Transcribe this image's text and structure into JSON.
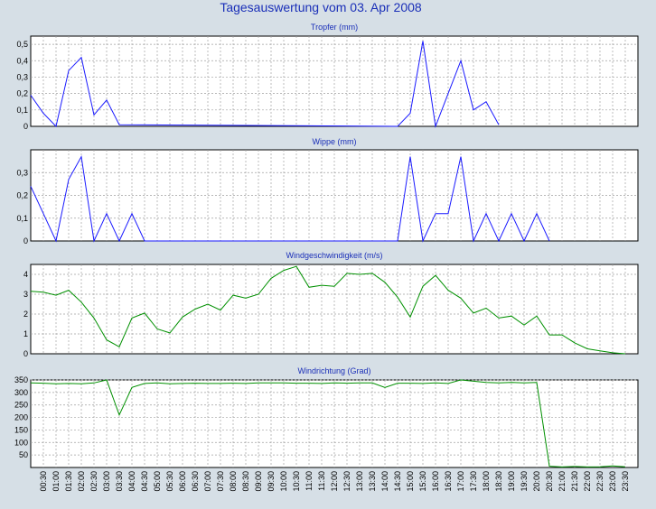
{
  "page_title": "Tagesauswertung vom 03. Apr 2008",
  "colors": {
    "background": "#d6dfe6",
    "plot_background": "#ffffff",
    "grid": "#a0a0a0",
    "title": "#1a2fb8",
    "blue_series": "#1a1aff",
    "green_series": "#009000"
  },
  "x_tick_labels": [
    "00:30",
    "01:00",
    "01:30",
    "02:00",
    "02:30",
    "03:00",
    "03:30",
    "04:00",
    "04:30",
    "05:00",
    "05:30",
    "06:00",
    "06:30",
    "07:00",
    "07:30",
    "08:00",
    "08:30",
    "09:00",
    "09:30",
    "10:00",
    "10:30",
    "11:00",
    "11:30",
    "12:00",
    "12:30",
    "13:00",
    "13:30",
    "14:00",
    "14:30",
    "15:00",
    "15:30",
    "16:00",
    "16:30",
    "17:00",
    "17:30",
    "18:00",
    "18:30",
    "19:00",
    "19:30",
    "20:00",
    "20:30",
    "21:00",
    "21:30",
    "22:00",
    "22:30",
    "23:00",
    "23:30"
  ],
  "chart_data": [
    {
      "type": "line",
      "title": "Tropfer (mm)",
      "color": "blue",
      "ylim": [
        0,
        0.55
      ],
      "yticks": [
        0,
        0.1,
        0.2,
        0.3,
        0.4,
        0.5
      ],
      "ytick_labels": [
        "0",
        "0,1",
        "0,2",
        "0,3",
        "0,4",
        "0,5"
      ],
      "grid": true,
      "x": [
        "00:00",
        "00:30",
        "01:00",
        "01:30",
        "02:00",
        "02:30",
        "03:00",
        "03:30",
        "14:30",
        "15:00",
        "15:30",
        "16:00",
        "16:30",
        "17:00",
        "17:30",
        "18:00",
        "18:30"
      ],
      "values": [
        0.19,
        0.08,
        0,
        0.34,
        0.42,
        0.07,
        0.16,
        0.01,
        0,
        0.08,
        0.52,
        0,
        0.2,
        0.4,
        0.1,
        0.15,
        0.01
      ]
    },
    {
      "type": "line",
      "title": "Wippe (mm)",
      "color": "blue",
      "ylim": [
        0,
        0.4
      ],
      "yticks": [
        0,
        0.1,
        0.2,
        0.3
      ],
      "ytick_labels": [
        "0",
        "0,1",
        "0,2",
        "0,3"
      ],
      "grid": true,
      "x": [
        "00:00",
        "00:30",
        "01:00",
        "01:30",
        "02:00",
        "02:30",
        "03:00",
        "03:30",
        "04:00",
        "04:30",
        "14:30",
        "15:00",
        "15:30",
        "16:00",
        "16:30",
        "17:00",
        "17:30",
        "18:00",
        "18:30",
        "19:00",
        "19:30",
        "20:00",
        "20:30"
      ],
      "values": [
        0.24,
        0.12,
        0,
        0.27,
        0.37,
        0,
        0.12,
        0,
        0.12,
        0,
        0,
        0.37,
        0,
        0.12,
        0.12,
        0.37,
        0,
        0.12,
        0,
        0.12,
        0,
        0.12,
        0
      ]
    },
    {
      "type": "line",
      "title": "Windgeschwindigkeit (m/s)",
      "color": "green",
      "ylim": [
        0,
        4.5
      ],
      "yticks": [
        0,
        1,
        2,
        3,
        4
      ],
      "ytick_labels": [
        "0",
        "1",
        "2",
        "3",
        "4"
      ],
      "grid": true,
      "x": [
        "00:00",
        "00:30",
        "01:00",
        "01:30",
        "02:00",
        "02:30",
        "03:00",
        "03:30",
        "04:00",
        "04:30",
        "05:00",
        "05:30",
        "06:00",
        "06:30",
        "07:00",
        "07:30",
        "08:00",
        "08:30",
        "09:00",
        "09:30",
        "10:00",
        "10:30",
        "11:00",
        "11:30",
        "12:00",
        "12:30",
        "13:00",
        "13:30",
        "14:00",
        "14:30",
        "15:00",
        "15:30",
        "16:00",
        "16:30",
        "17:00",
        "17:30",
        "18:00",
        "18:30",
        "19:00",
        "19:30",
        "20:00",
        "20:30",
        "21:00",
        "21:30",
        "22:00",
        "22:30",
        "23:00",
        "23:30"
      ],
      "values": [
        3.15,
        3.1,
        2.95,
        3.2,
        2.6,
        1.8,
        0.7,
        0.35,
        1.8,
        2.05,
        1.25,
        1.05,
        1.85,
        2.25,
        2.5,
        2.2,
        2.95,
        2.8,
        3.0,
        3.8,
        4.2,
        4.4,
        3.35,
        3.45,
        3.4,
        4.05,
        4.0,
        4.05,
        3.6,
        2.85,
        1.85,
        3.4,
        3.95,
        3.2,
        2.8,
        2.05,
        2.3,
        1.8,
        1.9,
        1.45,
        1.9,
        0.95,
        0.95,
        0.55,
        0.25,
        0.15,
        0.05,
        0.0
      ]
    },
    {
      "type": "line",
      "title": "Windrichtung (Grad)",
      "color": "green",
      "ylim": [
        0,
        350
      ],
      "yticks": [
        50,
        100,
        150,
        200,
        250,
        300,
        350
      ],
      "ytick_labels": [
        "50",
        "100",
        "150",
        "200",
        "250",
        "300",
        "350"
      ],
      "grid": true,
      "x": [
        "00:00",
        "00:30",
        "01:00",
        "01:30",
        "02:00",
        "02:30",
        "03:00",
        "03:30",
        "04:00",
        "04:30",
        "05:00",
        "05:30",
        "06:00",
        "06:30",
        "07:00",
        "07:30",
        "08:00",
        "08:30",
        "09:00",
        "09:30",
        "10:00",
        "10:30",
        "11:00",
        "11:30",
        "12:00",
        "12:30",
        "13:00",
        "13:30",
        "14:00",
        "14:30",
        "15:00",
        "15:30",
        "16:00",
        "16:30",
        "17:00",
        "17:30",
        "18:00",
        "18:30",
        "19:00",
        "19:30",
        "20:00",
        "20:30",
        "21:00",
        "21:30",
        "22:00",
        "22:30",
        "23:00",
        "23:30"
      ],
      "values": [
        338,
        337,
        335,
        336,
        335,
        338,
        350,
        210,
        320,
        336,
        338,
        335,
        336,
        337,
        336,
        336,
        337,
        336,
        338,
        338,
        338,
        337,
        337,
        336,
        338,
        337,
        338,
        338,
        320,
        337,
        337,
        336,
        338,
        336,
        350,
        345,
        340,
        338,
        340,
        338,
        340,
        5,
        2,
        4,
        2,
        3,
        6,
        3
      ]
    }
  ]
}
